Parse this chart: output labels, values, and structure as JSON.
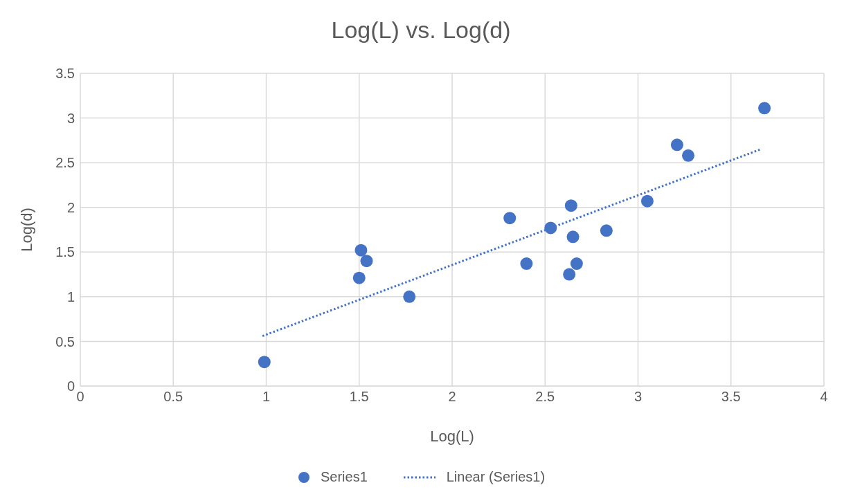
{
  "chart_data": {
    "type": "scatter",
    "title": "Log(L) vs. Log(d)",
    "xlabel": "Log(L)",
    "ylabel": "Log(d)",
    "xlim": [
      0,
      4
    ],
    "xticks": [
      0,
      0.5,
      1,
      1.5,
      2,
      2.5,
      3,
      3.5,
      4
    ],
    "ylim": [
      0,
      3.5
    ],
    "yticks": [
      0,
      0.5,
      1,
      1.5,
      2,
      2.5,
      3,
      3.5
    ],
    "grid": true,
    "legend": "bottom",
    "series": [
      {
        "name": "Series1",
        "marker": "circle",
        "color": "#4472c4",
        "x": [
          0.99,
          1.51,
          1.54,
          1.5,
          1.77,
          2.31,
          2.4,
          2.53,
          2.64,
          2.65,
          2.67,
          2.63,
          2.83,
          3.05,
          3.21,
          3.27,
          3.68
        ],
        "values": [
          0.27,
          1.52,
          1.4,
          1.21,
          1.0,
          1.88,
          1.37,
          1.77,
          2.02,
          1.67,
          1.37,
          1.25,
          1.74,
          2.07,
          2.7,
          2.58,
          3.11
        ]
      },
      {
        "name": "Linear (Series1)",
        "type": "line",
        "line_style": "dotted",
        "color": "#4472c4",
        "x": [
          0.98,
          3.66
        ],
        "values": [
          0.56,
          2.65
        ]
      }
    ]
  }
}
